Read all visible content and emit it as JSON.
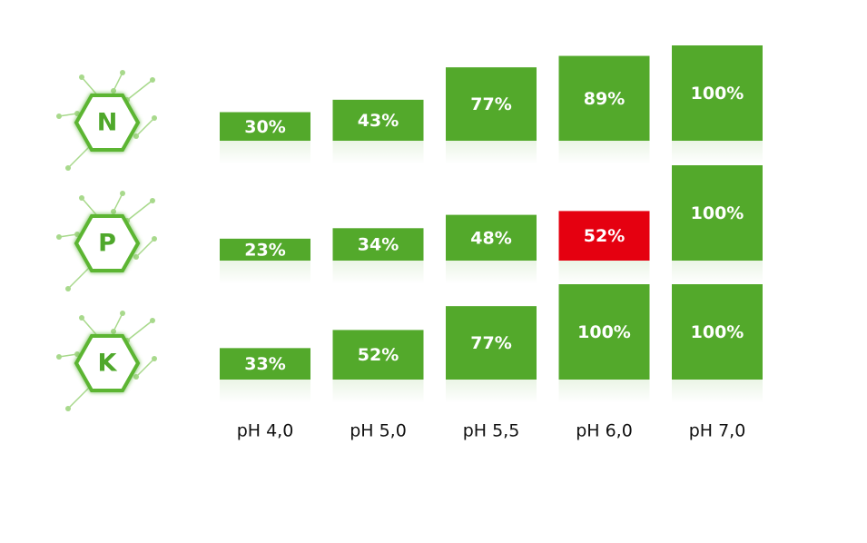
{
  "chart_data": {
    "type": "bar",
    "categories": [
      "pH 4,0",
      "pH 5,0",
      "pH 5,5",
      "pH 6,0",
      "pH 7,0"
    ],
    "series": [
      {
        "name": "N",
        "color": "#53a92b",
        "values": [
          30,
          43,
          77,
          89,
          100
        ],
        "value_labels": [
          "30%",
          "43%",
          "77%",
          "89%",
          "100%"
        ]
      },
      {
        "name": "P",
        "color": "#53a92b",
        "colors": [
          "#53a92b",
          "#53a92b",
          "#53a92b",
          "#e50010",
          "#53a92b"
        ],
        "values": [
          23,
          34,
          48,
          52,
          100
        ],
        "value_labels": [
          "23%",
          "34%",
          "48%",
          "52%",
          "100%"
        ]
      },
      {
        "name": "K",
        "color": "#53a92b",
        "values": [
          33,
          52,
          77,
          100,
          100
        ],
        "value_labels": [
          "33%",
          "52%",
          "77%",
          "100%",
          "100%"
        ]
      }
    ]
  }
}
